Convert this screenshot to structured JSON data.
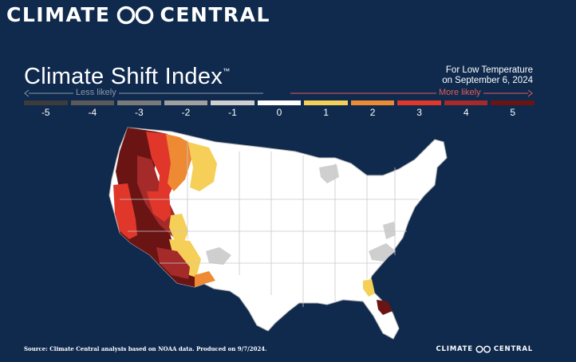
{
  "brand": {
    "word1": "CLIMATE",
    "word2": "CENTRAL"
  },
  "title": "Climate Shift Index",
  "title_mark": "™",
  "subtitle": {
    "line1": "For Low Temperature",
    "line2": "on September 6, 2024"
  },
  "legend": {
    "less_label": "Less likely",
    "more_label": "More likely",
    "items": [
      {
        "value": "-5",
        "color": "#3c3c3c"
      },
      {
        "value": "-4",
        "color": "#5a5a5a"
      },
      {
        "value": "-3",
        "color": "#7a7a7a"
      },
      {
        "value": "-2",
        "color": "#a0a0a0"
      },
      {
        "value": "-1",
        "color": "#cfcfcf"
      },
      {
        "value": "0",
        "color": "#ffffff"
      },
      {
        "value": "1",
        "color": "#f5cf57"
      },
      {
        "value": "2",
        "color": "#ee8a33"
      },
      {
        "value": "3",
        "color": "#e1372b"
      },
      {
        "value": "4",
        "color": "#a52a2a"
      },
      {
        "value": "5",
        "color": "#6b1414"
      }
    ]
  },
  "map": {
    "region": "Contiguous United States",
    "icon": "us-map",
    "background_color": "#ffffff",
    "border_color": "#bdbdbd"
  },
  "footer": {
    "source": "Source: Climate Central analysis based on NOAA data. Produced on 9/7/2024.",
    "brand_word1": "CLIMATE",
    "brand_word2": "CENTRAL"
  }
}
